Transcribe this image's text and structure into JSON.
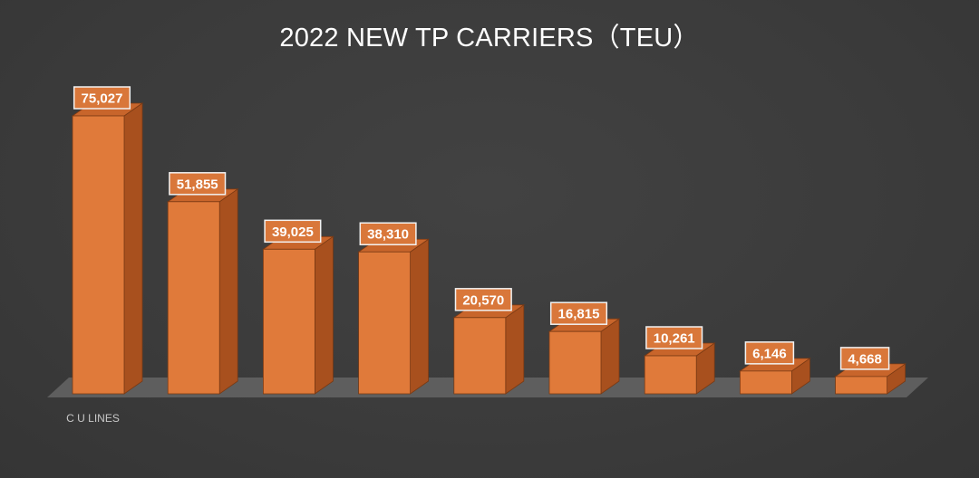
{
  "chart_data": {
    "type": "bar",
    "title": "2022 NEW TP CARRIERS（TEU）",
    "categories": [
      "C U LINES",
      "",
      "",
      "",
      "",
      "",
      "",
      "",
      ""
    ],
    "values": [
      75027,
      51855,
      39025,
      38310,
      20570,
      16815,
      10261,
      6146,
      4668
    ],
    "data_labels": [
      "75,027",
      "51,855",
      "39,025",
      "38,310",
      "20,570",
      "16,815",
      "10,261",
      "6,146",
      "4,668"
    ],
    "ylim": [
      0,
      75027
    ],
    "xlabel": "",
    "ylabel": "",
    "grid": false,
    "legend": "none",
    "style": "3d-column"
  },
  "colors": {
    "background": "#3c3c3c",
    "bar_front": "#e07a3a",
    "bar_side": "#a8501e",
    "bar_top": "#c8652b",
    "bar_edge": "#7a3a14",
    "floor": "#5e5e5e",
    "label_box_fill": "#d9773a",
    "label_box_border": "#f2f2f2",
    "title": "#ffffff",
    "category_text": "#c8c8c8"
  }
}
